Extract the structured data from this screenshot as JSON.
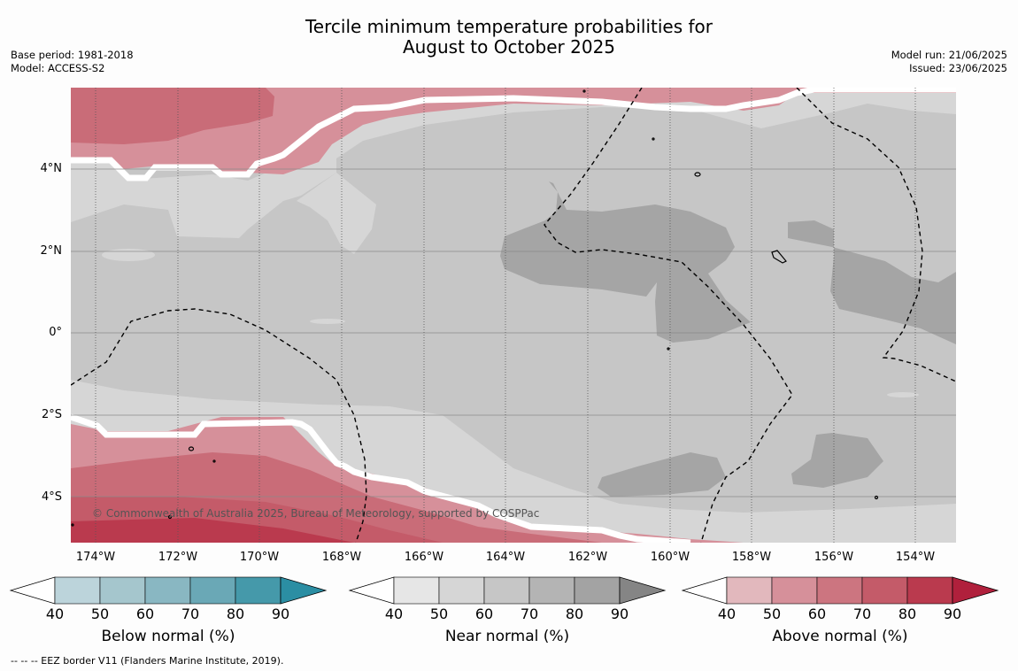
{
  "title": {
    "line1": "Tercile minimum temperature probabilities for",
    "line2": "August to October 2025"
  },
  "meta_left": {
    "base_period": "Base period: 1981-2018",
    "model": "Model: ACCESS-S2"
  },
  "meta_right": {
    "model_run": "Model run: 21/06/2025",
    "issued": "Issued: 23/06/2025"
  },
  "map": {
    "lat_labels": [
      "4°N",
      "2°N",
      "0°",
      "2°S",
      "4°S"
    ],
    "lon_labels": [
      "174°W",
      "172°W",
      "170°W",
      "168°W",
      "166°W",
      "164°W",
      "162°W",
      "160°W",
      "158°W",
      "156°W",
      "154°W"
    ],
    "credit": "© Commonwealth of Australia 2025, Bureau of Meteorology, supported by COSPPac"
  },
  "colorbars": [
    {
      "title": "Below normal (%)",
      "ticks": [
        "40",
        "50",
        "60",
        "70",
        "80",
        "90"
      ],
      "colors": [
        "#ffffff",
        "#bcd4db",
        "#a5c6cd",
        "#89b7c2",
        "#6aa8b6",
        "#4599aa",
        "#2b8ea3"
      ]
    },
    {
      "title": "Near normal (%)",
      "ticks": [
        "40",
        "50",
        "60",
        "70",
        "80",
        "90"
      ],
      "colors": [
        "#ffffff",
        "#e6e6e6",
        "#d6d6d6",
        "#c6c6c6",
        "#b4b4b4",
        "#a3a3a3",
        "#858585"
      ]
    },
    {
      "title": "Above normal (%)",
      "ticks": [
        "40",
        "50",
        "60",
        "70",
        "80",
        "90"
      ],
      "colors": [
        "#ffffff",
        "#e2b8bd",
        "#d6909a",
        "#cc7580",
        "#c45b69",
        "#ba3a4e",
        "#b0203c"
      ]
    }
  ],
  "footnote": "--  --  -- EEZ border V11 (Flanders Marine Institute, 2019)."
}
